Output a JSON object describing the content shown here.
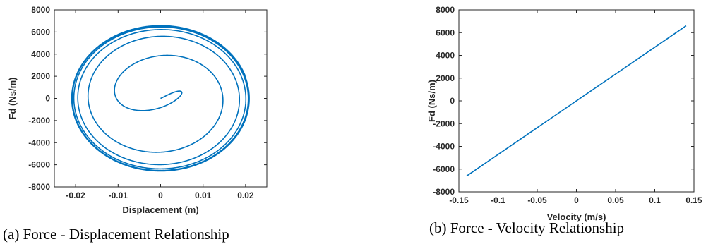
{
  "chart_data": [
    {
      "type": "line",
      "xlabel": "Displacement (m)",
      "ylabel": "Fd (Ns/m)",
      "xlim": [
        -0.025,
        0.025
      ],
      "ylim": [
        -8000,
        8000
      ],
      "xticks": [
        -0.02,
        -0.01,
        0,
        0.01,
        0.02
      ],
      "xtick_labels": [
        "-0.02",
        "-0.01",
        "0",
        "0.01",
        "0.02"
      ],
      "yticks": [
        8000,
        6000,
        4000,
        2000,
        0,
        -2000,
        -4000,
        -6000,
        -8000
      ],
      "ytick_labels": [
        "8000",
        "6000",
        "4000",
        "2000",
        "0",
        "-2000",
        "-4000",
        "-6000",
        "-8000"
      ],
      "grid": false,
      "series": [
        {
          "description": "spiral from origin converging to steady-state ellipse",
          "x_amplitude_steady": 0.021,
          "y_amplitude_steady": 6600,
          "start": [
            0,
            0
          ],
          "color": "#0072BD"
        }
      ],
      "caption": "(a)   Force - Displacement Relationship"
    },
    {
      "type": "line",
      "xlabel": "Velocity (m/s)",
      "ylabel": "Fd (Ns/m)",
      "xlim": [
        -0.15,
        0.15
      ],
      "ylim": [
        -8000,
        8000
      ],
      "xticks": [
        -0.15,
        -0.1,
        -0.05,
        0,
        0.05,
        0.1,
        0.15
      ],
      "xtick_labels": [
        "-0.15",
        "-0.1",
        "-0.05",
        "0",
        "0.05",
        "0.1",
        "0.15"
      ],
      "yticks": [
        8000,
        6000,
        4000,
        2000,
        0,
        -2000,
        -4000,
        -6000,
        -8000
      ],
      "ytick_labels": [
        "8000",
        "6000",
        "4000",
        "2000",
        "0",
        "-2000",
        "-4000",
        "-6000",
        "-8000"
      ],
      "grid": false,
      "series": [
        {
          "x": [
            -0.14,
            0.14
          ],
          "y": [
            -6600,
            6600
          ],
          "color": "#0072BD"
        }
      ],
      "caption": "(b) Force - Velocity Relationship"
    }
  ]
}
